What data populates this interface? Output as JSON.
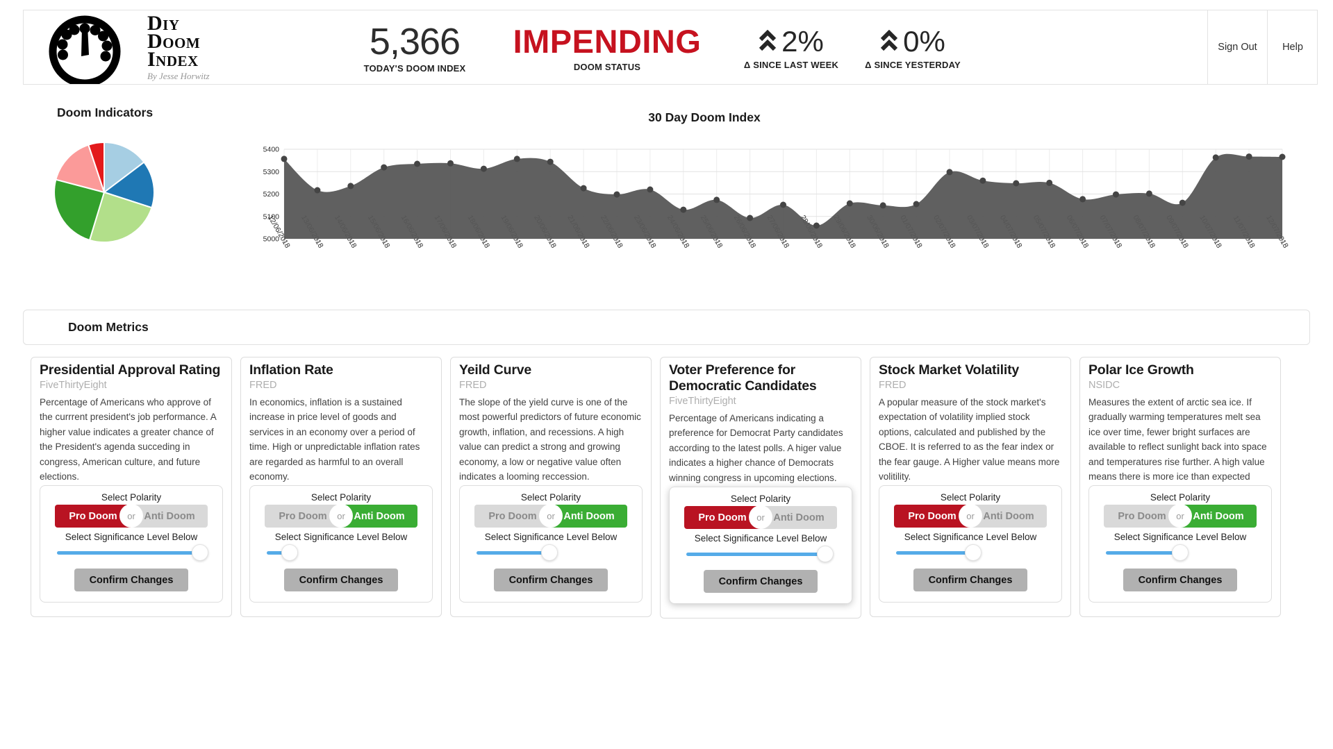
{
  "header": {
    "brand": {
      "line1": "Diy",
      "line2": "Doom",
      "line3": "Index",
      "byline": "By Jesse Horwitz"
    },
    "today": {
      "value": "5,366",
      "label": "TODAY'S DOOM INDEX"
    },
    "status": {
      "value": "IMPENDING",
      "label": "DOOM STATUS",
      "color": "#c6121f"
    },
    "deltas": [
      {
        "value": "2%",
        "label": "Δ SINCE LAST WEEK",
        "icon": "chevron-double-up"
      },
      {
        "value": "0%",
        "label": "Δ SINCE YESTERDAY",
        "icon": "chevron-double-up"
      }
    ],
    "actions": {
      "sign_out": "Sign Out",
      "help": "Help"
    }
  },
  "indicators": {
    "title": "Doom Indicators",
    "chart_data": {
      "type": "pie",
      "title": "Doom Indicators",
      "segments": [
        {
          "value": 14.7,
          "color": "#a6cee3"
        },
        {
          "value": 15.3,
          "color": "#1f78b4"
        },
        {
          "value": 24.7,
          "color": "#b2df8a"
        },
        {
          "value": 24.4,
          "color": "#33a02c"
        },
        {
          "value": 15.8,
          "color": "#fb9a99"
        },
        {
          "value": 5.1,
          "color": "#e31a1c"
        }
      ],
      "legend_position": "none"
    }
  },
  "doom_chart": {
    "chart_data": {
      "type": "area",
      "title": "30 Day Doom Index",
      "x": [
        "12/06/2018",
        "13/06/2018",
        "14/06/2018",
        "15/06/2018",
        "16/06/2018",
        "17/06/2018",
        "18/06/2018",
        "19/06/2018",
        "20/06/2018",
        "21/06/2018",
        "22/06/2018",
        "23/06/2018",
        "24/06/2018",
        "25/06/2018",
        "26/06/2018",
        "27/06/2018",
        "28/06/2018",
        "29/06/2018",
        "30/06/2018",
        "01/07/2018",
        "02/07/2018",
        "03/07/2018",
        "04/07/2018",
        "05/07/2018",
        "06/07/2018",
        "07/07/2018",
        "08/07/2018",
        "09/07/2018",
        "10/07/2018",
        "11/07/2018",
        "12/07/2018"
      ],
      "values": [
        5357,
        5217,
        5236,
        5319,
        5335,
        5337,
        5313,
        5357,
        5344,
        5226,
        5198,
        5220,
        5130,
        5174,
        5093,
        5152,
        5059,
        5158,
        5149,
        5155,
        5298,
        5260,
        5248,
        5250,
        5177,
        5198,
        5202,
        5161,
        5363,
        5367,
        5366
      ],
      "ylim": [
        5000,
        5400
      ],
      "yticks": [
        5000,
        5100,
        5200,
        5300,
        5400
      ],
      "grid": true,
      "color": "#575757",
      "point_color": "#454545"
    }
  },
  "metrics_bar": {
    "title": "Doom Metrics"
  },
  "cards": {
    "labels": {
      "select_polarity": "Select Polarity",
      "pro": "Pro Doom",
      "or": "or",
      "anti": "Anti Doom",
      "significance": "Select Significance Level Below",
      "confirm": "Confirm Changes"
    },
    "items": [
      {
        "title": "Presidential Approval Rating",
        "source": "FiveThirtyEight",
        "description": "Percentage of Americans who approve of the currrent president's job performance. A higher value indicates a greater chance of the President's agenda succeding in congress, American culture, and future elections.",
        "polarity": "pro",
        "significance_pct": 100,
        "elevated": false
      },
      {
        "title": "Inflation Rate",
        "source": "FRED",
        "description": "In economics, inflation is a sustained increase in price level of goods and services in an economy over a period of time. High or unpredictable inflation rates are regarded as harmful to an overall economy.",
        "polarity": "anti",
        "significance_pct": 16,
        "elevated": false
      },
      {
        "title": "Yeild Curve",
        "source": "FRED",
        "description": "The slope of the yield curve is one of the most powerful predictors of future economic growth, inflation, and recessions. A high value can predict a strong and growing economy, a low or negative value often indicates a looming reccession.",
        "polarity": "anti",
        "significance_pct": 51,
        "elevated": false
      },
      {
        "title": "Voter Preference for Democratic Candidates",
        "source": "FiveThirtyEight",
        "description": "Percentage of Americans indicating a preference for Democrat Party candidates according to the latest polls. A higer value indicates a higher chance of Democrats winning congress in upcoming elections.",
        "polarity": "pro",
        "significance_pct": 97,
        "elevated": true
      },
      {
        "title": "Stock Market Volatility",
        "source": "FRED",
        "description": "A popular measure of the stock market's expectation of volatility implied stock options, calculated and published by the CBOE. It is referred to as the fear index or the fear gauge. A Higher value means more volitility.",
        "polarity": "pro",
        "significance_pct": 54,
        "elevated": false
      },
      {
        "title": "Polar Ice Growth",
        "source": "NSIDC",
        "description": "Measures the extent of arctic sea ice. If gradually warming temperatures melt sea ice over time, fewer bright surfaces are available to reflect sunlight back into space and temperatures rise further. A high value means there is more ice than expected",
        "polarity": "anti",
        "significance_pct": 52,
        "elevated": false
      }
    ]
  }
}
